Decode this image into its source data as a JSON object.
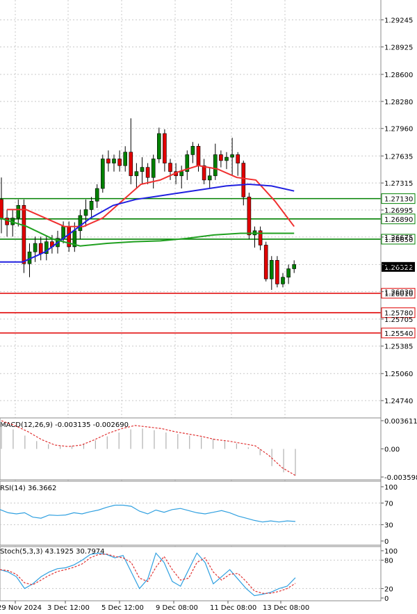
{
  "chart_data": {
    "type": "candlestick",
    "main": {
      "y_ticks": [
        "1.29245",
        "1.28925",
        "1.28600",
        "1.28280",
        "1.27960",
        "1.27635",
        "1.27315",
        "1.26995",
        "1.26675",
        "1.26350",
        "1.26030",
        "1.25705",
        "1.25385",
        "1.25060",
        "1.24740"
      ],
      "ylim": [
        1.2456,
        1.2948
      ],
      "current_price": "1.26322",
      "levels": [
        {
          "label": "1.27130",
          "value": 1.2713,
          "color": "#008000"
        },
        {
          "label": "1.26890",
          "value": 1.2689,
          "color": "#008000"
        },
        {
          "label": "1.26650",
          "value": 1.2665,
          "color": "#008000"
        },
        {
          "label": "1.26010",
          "value": 1.2601,
          "color": "#e00000"
        },
        {
          "label": "1.25780",
          "value": 1.2578,
          "color": "#e00000"
        },
        {
          "label": "1.25540",
          "value": 1.2554,
          "color": "#e00000"
        }
      ],
      "candles": [
        [
          1.2712,
          1.2738,
          1.2672,
          1.269
        ],
        [
          1.269,
          1.27,
          1.2668,
          1.2682
        ],
        [
          1.2682,
          1.27,
          1.2668,
          1.269
        ],
        [
          1.269,
          1.2712,
          1.268,
          1.2705
        ],
        [
          1.2705,
          1.2712,
          1.2625,
          1.2636
        ],
        [
          1.2636,
          1.266,
          1.262,
          1.265
        ],
        [
          1.265,
          1.2668,
          1.2638,
          1.266
        ],
        [
          1.266,
          1.2668,
          1.264,
          1.2648
        ],
        [
          1.2648,
          1.2668,
          1.264,
          1.2662
        ],
        [
          1.2662,
          1.267,
          1.2648,
          1.2656
        ],
        [
          1.2656,
          1.2675,
          1.2648,
          1.2666
        ],
        [
          1.2666,
          1.2686,
          1.266,
          1.268
        ],
        [
          1.268,
          1.2686,
          1.265,
          1.2656
        ],
        [
          1.2656,
          1.2685,
          1.265,
          1.2675
        ],
        [
          1.2675,
          1.27,
          1.2665,
          1.2693
        ],
        [
          1.2693,
          1.2712,
          1.268,
          1.27
        ],
        [
          1.27,
          1.2715,
          1.269,
          1.271
        ],
        [
          1.271,
          1.273,
          1.2702,
          1.2725
        ],
        [
          1.2725,
          1.2765,
          1.272,
          1.276
        ],
        [
          1.276,
          1.277,
          1.2745,
          1.2755
        ],
        [
          1.2755,
          1.2765,
          1.2745,
          1.276
        ],
        [
          1.276,
          1.277,
          1.2745,
          1.2752
        ],
        [
          1.2752,
          1.2775,
          1.2745,
          1.2768
        ],
        [
          1.2768,
          1.2808,
          1.273,
          1.274
        ],
        [
          1.274,
          1.2755,
          1.2725,
          1.2745
        ],
        [
          1.2745,
          1.2762,
          1.273,
          1.275
        ],
        [
          1.275,
          1.2755,
          1.273,
          1.2738
        ],
        [
          1.2738,
          1.2765,
          1.2725,
          1.276
        ],
        [
          1.276,
          1.2797,
          1.2755,
          1.279
        ],
        [
          1.279,
          1.2795,
          1.2745,
          1.2755
        ],
        [
          1.2755,
          1.276,
          1.2735,
          1.2745
        ],
        [
          1.2745,
          1.2755,
          1.273,
          1.274
        ],
        [
          1.274,
          1.2752,
          1.2725,
          1.2745
        ],
        [
          1.2745,
          1.277,
          1.2735,
          1.2765
        ],
        [
          1.2765,
          1.278,
          1.2755,
          1.2775
        ],
        [
          1.2775,
          1.2778,
          1.2745,
          1.2752
        ],
        [
          1.2752,
          1.276,
          1.273,
          1.2735
        ],
        [
          1.2735,
          1.275,
          1.2725,
          1.274
        ],
        [
          1.274,
          1.2778,
          1.2735,
          1.2765
        ],
        [
          1.2765,
          1.277,
          1.275,
          1.2758
        ],
        [
          1.2758,
          1.2768,
          1.2748,
          1.2762
        ],
        [
          1.2762,
          1.2785,
          1.274,
          1.2765
        ],
        [
          1.2765,
          1.2768,
          1.274,
          1.2755
        ],
        [
          1.2755,
          1.2758,
          1.2705,
          1.2715
        ],
        [
          1.2715,
          1.272,
          1.2665,
          1.267
        ],
        [
          1.267,
          1.268,
          1.2655,
          1.2675
        ],
        [
          1.2675,
          1.268,
          1.2652,
          1.2658
        ],
        [
          1.2658,
          1.2662,
          1.2615,
          1.2618
        ],
        [
          1.2618,
          1.2645,
          1.2605,
          1.264
        ],
        [
          1.264,
          1.2645,
          1.2608,
          1.2612
        ],
        [
          1.2612,
          1.2625,
          1.2608,
          1.262
        ],
        [
          1.262,
          1.2635,
          1.2612,
          1.263
        ],
        [
          1.263,
          1.264,
          1.2625,
          1.2635
        ]
      ],
      "ma_fast": [
        1.27,
        1.27,
        1.269,
        1.268,
        1.268,
        1.269,
        1.271,
        1.273,
        1.2735,
        1.2745,
        1.2752,
        1.2748,
        1.2738,
        1.2735,
        1.271,
        1.268
      ],
      "ma_mid": [
        1.2638,
        1.2638,
        1.265,
        1.267,
        1.269,
        1.2705,
        1.2712,
        1.2716,
        1.272,
        1.2724,
        1.2728,
        1.273,
        1.2728,
        1.2722
      ],
      "ma_slow": [
        1.269,
        1.268,
        1.2665,
        1.2657,
        1.266,
        1.2662,
        1.2663,
        1.2666,
        1.267,
        1.2672,
        1.2672,
        1.2672
      ]
    },
    "macd": {
      "label": "MACD(12,26,9) -0.003135 -0.002690",
      "y_ticks": [
        "0.003611",
        "0.00",
        "-0.003598"
      ],
      "hist_top": [
        0.0034,
        0.0025,
        0.0017,
        0.001,
        0.0006,
        0.0004,
        0.0004,
        0.0007,
        0.0011,
        0.0016,
        0.0021,
        0.0025,
        0.0026,
        0.0024,
        0.0021,
        0.0019,
        0.0017,
        0.0015,
        0.0013,
        0.001,
        0.0007,
        0.0002
      ],
      "hist_bottom": [
        -0.0008,
        -0.0022,
        -0.003,
        -0.0034
      ],
      "signal": [
        0.0036,
        0.003,
        0.0022,
        0.0012,
        0.0005,
        0.0003,
        0.0005,
        0.0012,
        0.002,
        0.0026,
        0.003,
        0.0028,
        0.0026,
        0.0022,
        0.0019,
        0.0016,
        0.0012,
        0.001,
        0.0007,
        0.0004,
        -0.0008,
        -0.0024,
        -0.0034
      ]
    },
    "rsi": {
      "label": "RSI(14) 36.3662",
      "y_ticks": [
        "100",
        "70",
        "30",
        "0"
      ],
      "values": [
        58,
        52,
        50,
        52,
        44,
        42,
        48,
        47,
        48,
        52,
        50,
        54,
        57,
        62,
        66,
        66,
        64,
        55,
        50,
        57,
        53,
        58,
        60,
        56,
        52,
        50,
        53,
        56,
        52,
        46,
        42,
        38,
        35,
        37,
        35,
        37,
        36
      ]
    },
    "stoch": {
      "label": "Stoch(5,3,3) 43.1925 30.7974",
      "y_ticks": [
        "100",
        "80",
        "20",
        "0"
      ],
      "k": [
        60,
        55,
        45,
        20,
        30,
        45,
        55,
        62,
        64,
        70,
        80,
        92,
        95,
        92,
        85,
        90,
        55,
        20,
        40,
        95,
        75,
        35,
        25,
        60,
        95,
        75,
        30,
        45,
        60,
        40,
        20,
        5,
        8,
        12,
        20,
        25,
        43
      ],
      "d": [
        60,
        58,
        50,
        32,
        28,
        38,
        48,
        56,
        60,
        65,
        72,
        85,
        92,
        93,
        88,
        85,
        75,
        42,
        35,
        65,
        88,
        60,
        38,
        42,
        75,
        85,
        55,
        38,
        50,
        52,
        35,
        15,
        10,
        10,
        14,
        20,
        31
      ]
    },
    "x_ticks": [
      "29 Nov 2024",
      "3 Dec 12:00",
      "5 Dec 12:00",
      "9 Dec 08:00",
      "11 Dec 08:00",
      "13 Dec 08:00"
    ],
    "colors": {
      "bull": "#008000",
      "bear": "#e00000",
      "ma_fast": "#f03030",
      "ma_mid": "#2020e0",
      "ma_slow": "#20a020",
      "line": "#30a0e0"
    }
  }
}
